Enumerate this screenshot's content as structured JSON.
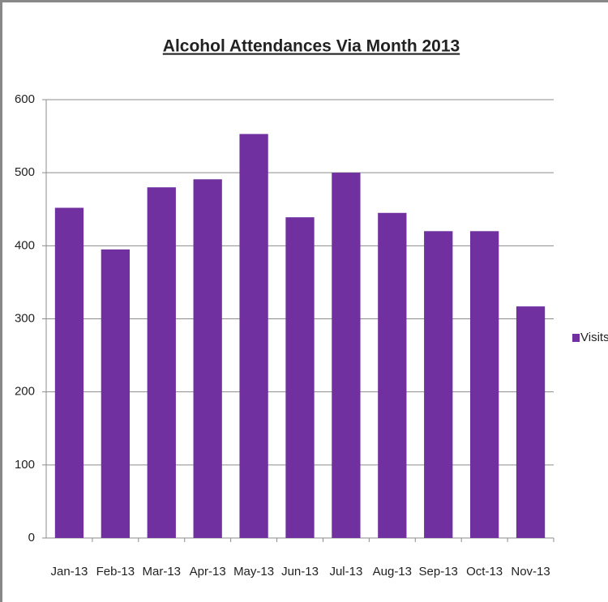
{
  "chart_data": {
    "type": "bar",
    "title": "Alcohol Attendances Via Month 2013",
    "categories": [
      "Jan-13",
      "Feb-13",
      "Mar-13",
      "Apr-13",
      "May-13",
      "Jun-13",
      "Jul-13",
      "Aug-13",
      "Sep-13",
      "Oct-13",
      "Nov-13"
    ],
    "series": [
      {
        "name": "Visits",
        "color": "#7030a0",
        "values": [
          452,
          395,
          480,
          491,
          553,
          439,
          500,
          445,
          420,
          420,
          317
        ]
      }
    ],
    "ylim": [
      0,
      600
    ],
    "yticks": [
      0,
      100,
      200,
      300,
      400,
      500,
      600
    ],
    "grid": true,
    "legend": "right"
  }
}
